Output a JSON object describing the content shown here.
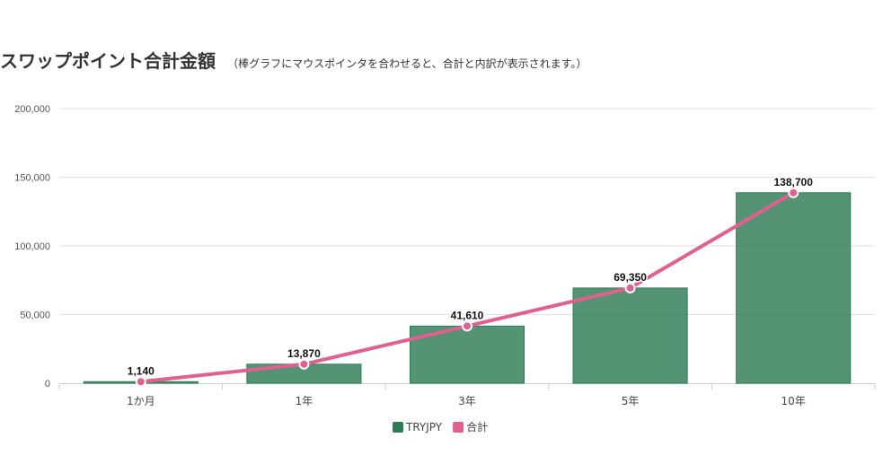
{
  "header": {
    "title": "スワップポイント合計金額",
    "subtitle": "（棒グラフにマウスポインタを合わせると、合計と内訳が表示されます。）"
  },
  "colors": {
    "bar": "#2e7d55",
    "line": "#e0608f",
    "marker_fill": "#e0608f",
    "marker_stroke": "#ffffff",
    "grid": "#e0e0e0",
    "axis": "#cccccc"
  },
  "chart_data": {
    "type": "bar",
    "categories": [
      "1か月",
      "1年",
      "3年",
      "5年",
      "10年"
    ],
    "series": [
      {
        "name": "TRYJPY",
        "type": "bar",
        "values": [
          1140,
          13870,
          41610,
          69350,
          138700
        ]
      },
      {
        "name": "合計",
        "type": "line",
        "values": [
          1140,
          13870,
          41610,
          69350,
          138700
        ]
      }
    ],
    "data_labels": [
      "1,140",
      "13,870",
      "41,610",
      "69,350",
      "138,700"
    ],
    "y_ticks": [
      0,
      50000,
      100000,
      150000,
      200000
    ],
    "y_tick_labels": [
      "0",
      "50,000",
      "100,000",
      "150,000",
      "200,000"
    ],
    "ylim": [
      0,
      200000
    ],
    "grid": true,
    "legend": "bottom-center"
  }
}
